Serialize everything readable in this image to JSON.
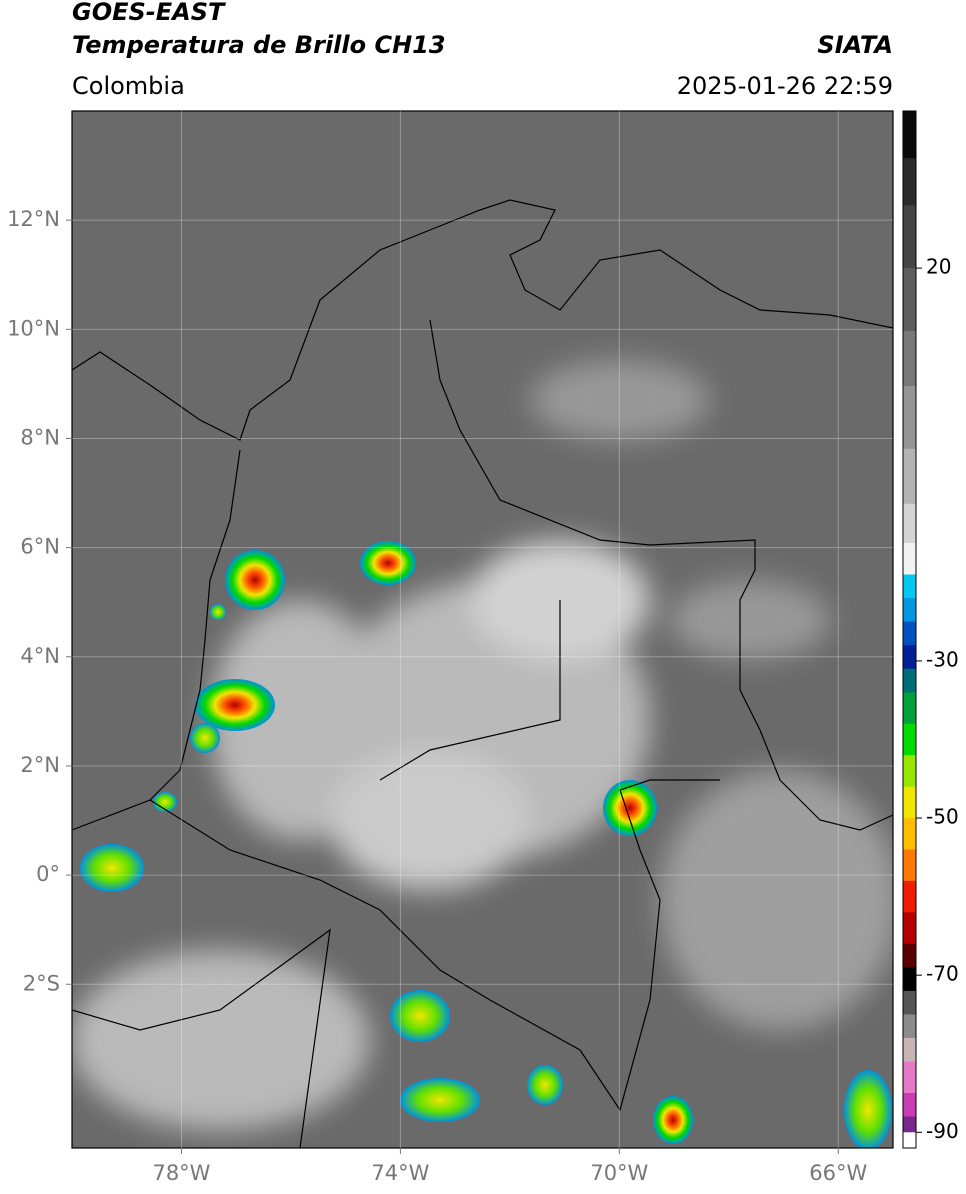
{
  "header": {
    "title": "GOES-EAST",
    "subtitle": "Temperatura de Brillo CH13",
    "region": "Colombia",
    "source": "SIATA",
    "datetime": "2025-01-26 22:59"
  },
  "map": {
    "lon_range": [
      -80,
      -65
    ],
    "lat_range": [
      -5,
      14
    ],
    "lon_ticks": [
      {
        "value": -78,
        "label": "78°W"
      },
      {
        "value": -74,
        "label": "74°W"
      },
      {
        "value": -70,
        "label": "70°W"
      },
      {
        "value": -66,
        "label": "66°W"
      }
    ],
    "lat_ticks": [
      {
        "value": 12,
        "label": "12°N"
      },
      {
        "value": 10,
        "label": "10°N"
      },
      {
        "value": 8,
        "label": "8°N"
      },
      {
        "value": 6,
        "label": "6°N"
      },
      {
        "value": 4,
        "label": "4°N"
      },
      {
        "value": 2,
        "label": "2°N"
      },
      {
        "value": 0,
        "label": "0°"
      },
      {
        "value": -2,
        "label": "2°S"
      }
    ],
    "grid": true
  },
  "colorbar": {
    "range": [
      -92,
      40
    ],
    "ticks": [
      20,
      -30,
      -50,
      -70,
      -90
    ],
    "stops": [
      {
        "value": 40,
        "color": "#0a0a0a"
      },
      {
        "value": 34,
        "color": "#2a2a2a"
      },
      {
        "value": 28,
        "color": "#444444"
      },
      {
        "value": 20,
        "color": "#5e5e5e"
      },
      {
        "value": 12,
        "color": "#787878"
      },
      {
        "value": 5,
        "color": "#959595"
      },
      {
        "value": -3,
        "color": "#b3b3b3"
      },
      {
        "value": -10,
        "color": "#d4d4d4"
      },
      {
        "value": -15,
        "color": "#f2f2f2"
      },
      {
        "value": -19,
        "color": "#00c8f0"
      },
      {
        "value": -22,
        "color": "#0096e0"
      },
      {
        "value": -25,
        "color": "#0050c0"
      },
      {
        "value": -28,
        "color": "#001e96"
      },
      {
        "value": -31,
        "color": "#006e78"
      },
      {
        "value": -34,
        "color": "#00a03c"
      },
      {
        "value": -38,
        "color": "#00dc00"
      },
      {
        "value": -42,
        "color": "#96e600"
      },
      {
        "value": -46,
        "color": "#f0e600"
      },
      {
        "value": -50,
        "color": "#ffbe00"
      },
      {
        "value": -54,
        "color": "#ff7800"
      },
      {
        "value": -58,
        "color": "#f01e00"
      },
      {
        "value": -62,
        "color": "#b40000"
      },
      {
        "value": -66,
        "color": "#5a0000"
      },
      {
        "value": -69,
        "color": "#000000"
      },
      {
        "value": -72,
        "color": "#555555"
      },
      {
        "value": -75,
        "color": "#8c8c8c"
      },
      {
        "value": -78,
        "color": "#c8b4b4"
      },
      {
        "value": -81,
        "color": "#e678c8"
      },
      {
        "value": -85,
        "color": "#c83cb4"
      },
      {
        "value": -88,
        "color": "#78288c"
      },
      {
        "value": -90,
        "color": "#ffffff"
      }
    ]
  }
}
